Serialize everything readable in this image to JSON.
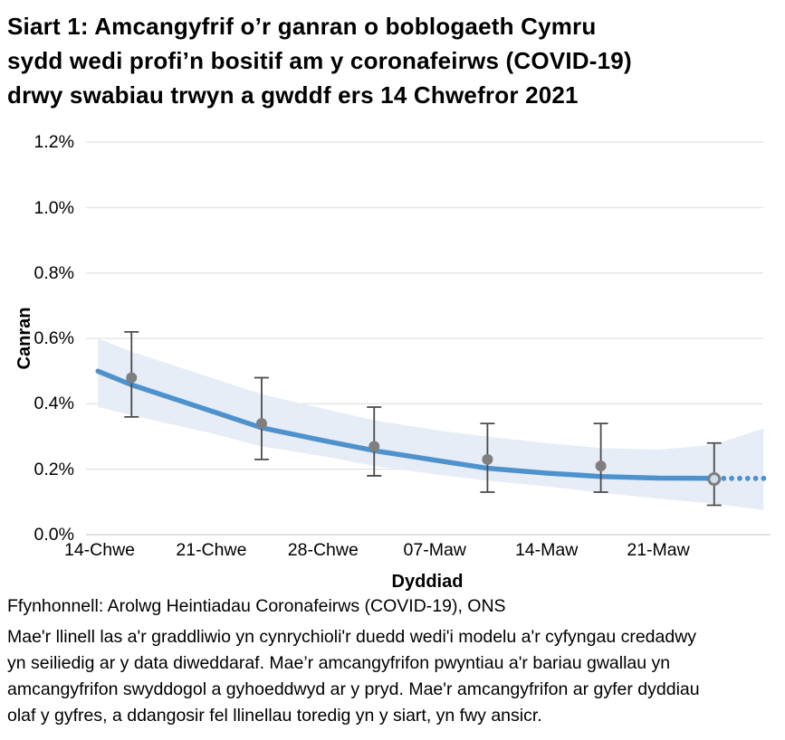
{
  "header": {
    "title_lines": [
      "Siart 1: Amcangyfrif o’r ganran o boblogaeth Cymru",
      "sydd wedi profi’n bositif am y coronafeirws (COVID-19)",
      "drwy swabiau trwyn a gwddf ers 14 Chwefror 2021"
    ]
  },
  "footer": {
    "source": "Ffynhonnell: Arolwg Heintiadau Coronafeirws (COVID-19), ONS",
    "note_lines": [
      "Mae'r llinell las a'r graddliwio yn cynrychioli'r duedd wedi'i modelu a'r cyfyngau credadwy",
      "yn seiliedig ar y data diweddaraf. Mae’r amcangyfrifon pwyntiau a'r bariau gwallau yn",
      "amcangyfrifon swyddogol a gyhoeddwyd ar y pryd. Mae'r amcangyfrifon ar gyfer dyddiau",
      "olaf y gyfres, a ddangosir fel llinellau toredig yn y siart, yn fwy ansicr."
    ]
  },
  "chart_data": {
    "type": "line",
    "title": "Siart 1: Amcangyfrif o’r ganran o boblogaeth Cymru sydd wedi profi’n bositif am y coronafeirws (COVID-19) drwy swabiau trwyn a gwddf ers 14 Chwefror 2021",
    "xlabel": "Dyddiad",
    "ylabel": "Canran",
    "x_unit": "diwrnodau ers 14 Chwefror 2021",
    "ylim": [
      0.0,
      1.2
    ],
    "grid": true,
    "colors": {
      "trend_line": "#4e92cd",
      "credible_band": "#e7edf6",
      "point_marker": "#7f7f7f",
      "error_bar": "#4a4a4a",
      "gridline": "#e4e4e4",
      "zero_line": "#cfcfcf"
    },
    "y_ticks": [
      {
        "label": "1.2%",
        "value": 1.2
      },
      {
        "label": "1.0%",
        "value": 1.0
      },
      {
        "label": "0.8%",
        "value": 0.8
      },
      {
        "label": "0.6%",
        "value": 0.6
      },
      {
        "label": "0.4%",
        "value": 0.4
      },
      {
        "label": "0.2%",
        "value": 0.2
      },
      {
        "label": "0.0%",
        "value": 0.0
      }
    ],
    "x_ticks": [
      {
        "label": "14-Chwe",
        "day": 0
      },
      {
        "label": "21-Chwe",
        "day": 7
      },
      {
        "label": "28-Chwe",
        "day": 14
      },
      {
        "label": "07-Maw",
        "day": 21
      },
      {
        "label": "14-Maw",
        "day": 28
      },
      {
        "label": "21-Maw",
        "day": 35
      }
    ],
    "trend_line": {
      "name": "duedd wedi'i modelu",
      "points": [
        [
          -0.1,
          0.5
        ],
        [
          2.0,
          0.458
        ],
        [
          4.5,
          0.418
        ],
        [
          7.0,
          0.378
        ],
        [
          10.15,
          0.327
        ],
        [
          14.0,
          0.288
        ],
        [
          17.2,
          0.257
        ],
        [
          21.0,
          0.228
        ],
        [
          24.3,
          0.203
        ],
        [
          28.0,
          0.188
        ],
        [
          31.4,
          0.178
        ],
        [
          35.0,
          0.173
        ],
        [
          38.5,
          0.172
        ]
      ]
    },
    "trend_dotted": {
      "name": "llinell doredig (mwy ansicr)",
      "day_start": 39.1,
      "day_end": 41.6,
      "value": 0.172,
      "n_dots": 6
    },
    "credible_band": {
      "name": "cyfyngau credadwy",
      "points": [
        [
          -0.1,
          0.6,
          0.39
        ],
        [
          2.0,
          0.56,
          0.365
        ],
        [
          7.0,
          0.48,
          0.31
        ],
        [
          10.15,
          0.43,
          0.27
        ],
        [
          14.0,
          0.385,
          0.24
        ],
        [
          17.2,
          0.35,
          0.21
        ],
        [
          21.0,
          0.32,
          0.185
        ],
        [
          24.3,
          0.3,
          0.165
        ],
        [
          28.0,
          0.28,
          0.148
        ],
        [
          31.4,
          0.265,
          0.128
        ],
        [
          35.0,
          0.26,
          0.11
        ],
        [
          38.5,
          0.275,
          0.095
        ],
        [
          41.6,
          0.325,
          0.075
        ]
      ]
    },
    "official_estimates": {
      "name": "amcangyfrifon pwyntiau swyddogol",
      "points": [
        {
          "day": 2.0,
          "value": 0.48,
          "lower": 0.36,
          "upper": 0.62,
          "open_marker": false
        },
        {
          "day": 10.15,
          "value": 0.34,
          "lower": 0.23,
          "upper": 0.48,
          "open_marker": false
        },
        {
          "day": 17.2,
          "value": 0.27,
          "lower": 0.18,
          "upper": 0.39,
          "open_marker": false
        },
        {
          "day": 24.3,
          "value": 0.23,
          "lower": 0.13,
          "upper": 0.34,
          "open_marker": false
        },
        {
          "day": 31.4,
          "value": 0.21,
          "lower": 0.13,
          "upper": 0.34,
          "open_marker": false
        },
        {
          "day": 38.5,
          "value": 0.17,
          "lower": 0.09,
          "upper": 0.28,
          "open_marker": true
        }
      ]
    }
  }
}
